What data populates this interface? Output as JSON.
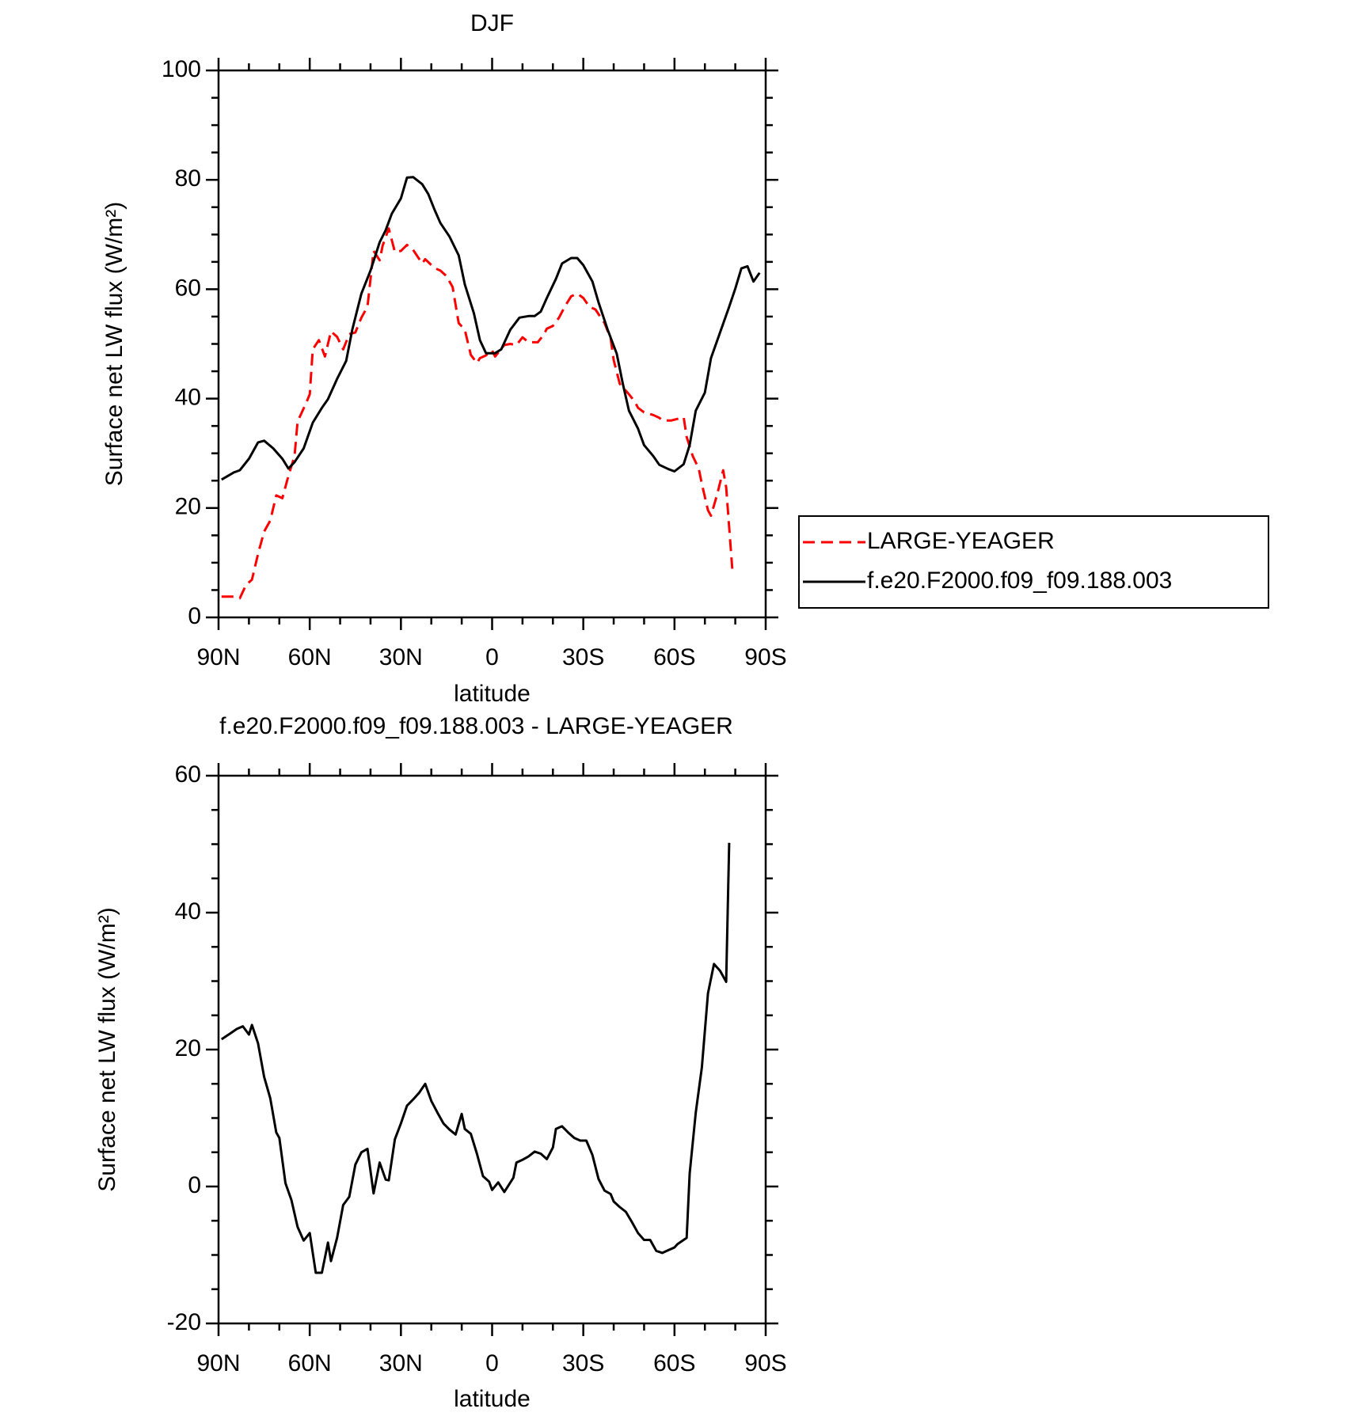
{
  "chart_data": [
    {
      "type": "line",
      "title": "DJF",
      "xlabel": "latitude",
      "ylabel": "Surface net LW flux (W/m²)",
      "xlim": [
        90,
        -90
      ],
      "xticks": [
        {
          "value": 90,
          "label": "90N"
        },
        {
          "value": 60,
          "label": "60N"
        },
        {
          "value": 30,
          "label": "30N"
        },
        0,
        {
          "value": -30,
          "label": "30S"
        },
        {
          "value": -60,
          "label": "60S"
        },
        {
          "value": -90,
          "label": "90S"
        }
      ],
      "xminorticks": [
        80,
        70,
        50,
        40,
        20,
        10,
        -10,
        -20,
        -40,
        -50,
        -70,
        -80
      ],
      "ylim": [
        0,
        100
      ],
      "yticks": [
        0,
        20,
        40,
        60,
        80,
        100
      ],
      "yminorticks": [
        5,
        10,
        15,
        25,
        30,
        35,
        45,
        50,
        55,
        65,
        70,
        75,
        85,
        90,
        95
      ],
      "legend": "outside-right",
      "series": [
        {
          "name": "LARGE-YEAGER",
          "color": "#ff0000",
          "dash": "dashed",
          "x": [
            89,
            85,
            83,
            81,
            79,
            77,
            75,
            73,
            71,
            69,
            67,
            65,
            64,
            61,
            60,
            59,
            57,
            55,
            53,
            51,
            49,
            47,
            45,
            43,
            41,
            39,
            37,
            36,
            34,
            32,
            30,
            28,
            26,
            23,
            22,
            19,
            17,
            15,
            13,
            11,
            9,
            7,
            5,
            4,
            2,
            0,
            -1,
            -4,
            -6,
            -8,
            -10,
            -12,
            -15,
            -17,
            -18,
            -20,
            -22,
            -24,
            -26,
            -28,
            -30,
            -32,
            -34,
            -37,
            -39,
            -40,
            -42,
            -45,
            -47,
            -48,
            -50,
            -53,
            -55,
            -56,
            -59,
            -61,
            -63,
            -64,
            -66,
            -68,
            -69,
            -71,
            -72,
            -74,
            -76,
            -77,
            -79
          ],
          "values": [
            3.8,
            3.8,
            3.5,
            5.9,
            6.9,
            11.6,
            15.7,
            17.7,
            22.3,
            21.8,
            25.9,
            29.5,
            35.8,
            39.4,
            40.8,
            49,
            50.7,
            47.7,
            52.3,
            51.3,
            49,
            51.8,
            52.1,
            54.8,
            56.8,
            67,
            65.3,
            68,
            71.1,
            66.8,
            67,
            68.1,
            67.2,
            64.7,
            65.5,
            63.9,
            63.4,
            62.4,
            60.4,
            53.8,
            52.6,
            48,
            46.5,
            47.4,
            47.9,
            48.8,
            47.7,
            49.8,
            50,
            49.8,
            51.2,
            50.3,
            50.3,
            51.7,
            52.8,
            53.3,
            54.8,
            56.9,
            58.7,
            59.2,
            58.4,
            56.8,
            56.3,
            53.8,
            51,
            47,
            42.7,
            40.8,
            39.4,
            38.3,
            37.5,
            37,
            36.5,
            36,
            36,
            36.3,
            36.6,
            33,
            29.5,
            27.2,
            24.4,
            19.6,
            18.6,
            22.4,
            26.9,
            23.8,
            8.9
          ]
        },
        {
          "name": "f.e20.F2000.f09_f09.188.003",
          "color": "#000000",
          "dash": "solid",
          "x": [
            89,
            85,
            83,
            80,
            77,
            75,
            72,
            69,
            67,
            65,
            62,
            59,
            56,
            54,
            51,
            48,
            46,
            43,
            40,
            37,
            35,
            33,
            30,
            28,
            26,
            23,
            21,
            19,
            17,
            14,
            11,
            9,
            6,
            4,
            2,
            -1,
            -3,
            -6,
            -9,
            -12,
            -14,
            -16,
            -18,
            -21,
            -23,
            -26,
            -28,
            -30,
            -33,
            -35,
            -38,
            -41,
            -43,
            -45,
            -48,
            -50,
            -53,
            -55,
            -58,
            -60,
            -63,
            -65,
            -67,
            -70,
            -72,
            -75,
            -78,
            -80,
            -82,
            -84,
            -86,
            -88
          ],
          "values": [
            25.2,
            26.5,
            26.9,
            29,
            32,
            32.3,
            30.9,
            29,
            27.2,
            28.4,
            30.9,
            35.6,
            38.3,
            39.9,
            43.6,
            46.9,
            52.6,
            59.2,
            63.4,
            68.6,
            70.8,
            73.8,
            76.6,
            80.4,
            80.5,
            79.2,
            77.4,
            74.6,
            72.1,
            69.6,
            66.2,
            60.9,
            55.6,
            50.7,
            48.3,
            48.3,
            49,
            52.6,
            54.8,
            55.1,
            55.1,
            55.9,
            58.4,
            61.9,
            64.7,
            65.7,
            65.7,
            64.4,
            61.4,
            57.6,
            52.6,
            48.2,
            42.7,
            37.8,
            34.5,
            31.5,
            29.5,
            27.9,
            27.1,
            26.7,
            28,
            31.5,
            37.8,
            41.1,
            47.4,
            52.1,
            56.8,
            60.1,
            63.8,
            64.2,
            61.4,
            63
          ]
        }
      ]
    },
    {
      "type": "line",
      "title": "f.e20.F2000.f09_f09.188.003 - LARGE-YEAGER",
      "xlabel": "latitude",
      "ylabel": "Surface net LW flux (W/m²)",
      "xlim": [
        90,
        -90
      ],
      "xticks": [
        {
          "value": 90,
          "label": "90N"
        },
        {
          "value": 60,
          "label": "60N"
        },
        {
          "value": 30,
          "label": "30N"
        },
        0,
        {
          "value": -30,
          "label": "30S"
        },
        {
          "value": -60,
          "label": "60S"
        },
        {
          "value": -90,
          "label": "90S"
        }
      ],
      "xminorticks": [
        80,
        70,
        50,
        40,
        20,
        10,
        -10,
        -20,
        -40,
        -50,
        -70,
        -80
      ],
      "ylim": [
        -20,
        60
      ],
      "yticks": [
        -20,
        0,
        20,
        40,
        60
      ],
      "yminorticks": [
        -15,
        -10,
        -5,
        5,
        10,
        15,
        25,
        30,
        35,
        45,
        50,
        55
      ],
      "color": "#000000",
      "x": [
        89,
        86,
        84,
        82,
        80,
        79,
        77,
        75,
        73,
        71,
        70,
        68,
        66,
        64,
        62,
        60,
        58,
        56,
        54,
        53,
        51,
        49,
        47,
        45,
        43,
        41,
        39,
        37,
        35,
        34,
        32,
        30,
        28,
        26,
        24,
        22,
        20,
        18,
        16,
        14,
        12,
        10,
        9,
        7,
        5,
        3,
        1,
        0,
        -2,
        -4,
        -7,
        -8,
        -10,
        -12,
        -14,
        -16,
        -18,
        -20,
        -21,
        -23,
        -25,
        -27,
        -29,
        -31,
        -33,
        -35,
        -37,
        -39,
        -40,
        -42,
        -44,
        -46,
        -48,
        -50,
        -52,
        -54,
        -56,
        -58,
        -60,
        -61,
        -64,
        -65,
        -67,
        -69,
        -71,
        -73,
        -75,
        -77,
        -78
      ],
      "values": [
        21.5,
        22.4,
        23,
        23.4,
        22.2,
        23.6,
        20.9,
        16,
        12.9,
        7.9,
        7.1,
        0.5,
        -2,
        -5.9,
        -7.9,
        -6.8,
        -12.6,
        -12.6,
        -8.2,
        -10.9,
        -7.5,
        -2.7,
        -1.5,
        3.2,
        5,
        5.5,
        -1,
        3.5,
        1,
        0.9,
        6.9,
        9.2,
        11.8,
        12.7,
        13.7,
        15,
        12.5,
        10.8,
        9.2,
        8.3,
        7.6,
        10.6,
        8.4,
        7.7,
        4.8,
        1.5,
        0.7,
        -0.5,
        0.6,
        -0.8,
        1.3,
        3.5,
        3.9,
        4.4,
        5.1,
        4.8,
        4,
        5.7,
        8.4,
        8.8,
        7.9,
        7.1,
        6.7,
        6.7,
        4.6,
        1.1,
        -0.6,
        -1.1,
        -2.2,
        -3,
        -3.7,
        -5.2,
        -6.8,
        -7.8,
        -7.8,
        -9.4,
        -9.7,
        -9.3,
        -8.9,
        -8.4,
        -7.5,
        1.9,
        10.8,
        17.4,
        28.2,
        32.5,
        31.5,
        29.9,
        50.2
      ]
    }
  ]
}
